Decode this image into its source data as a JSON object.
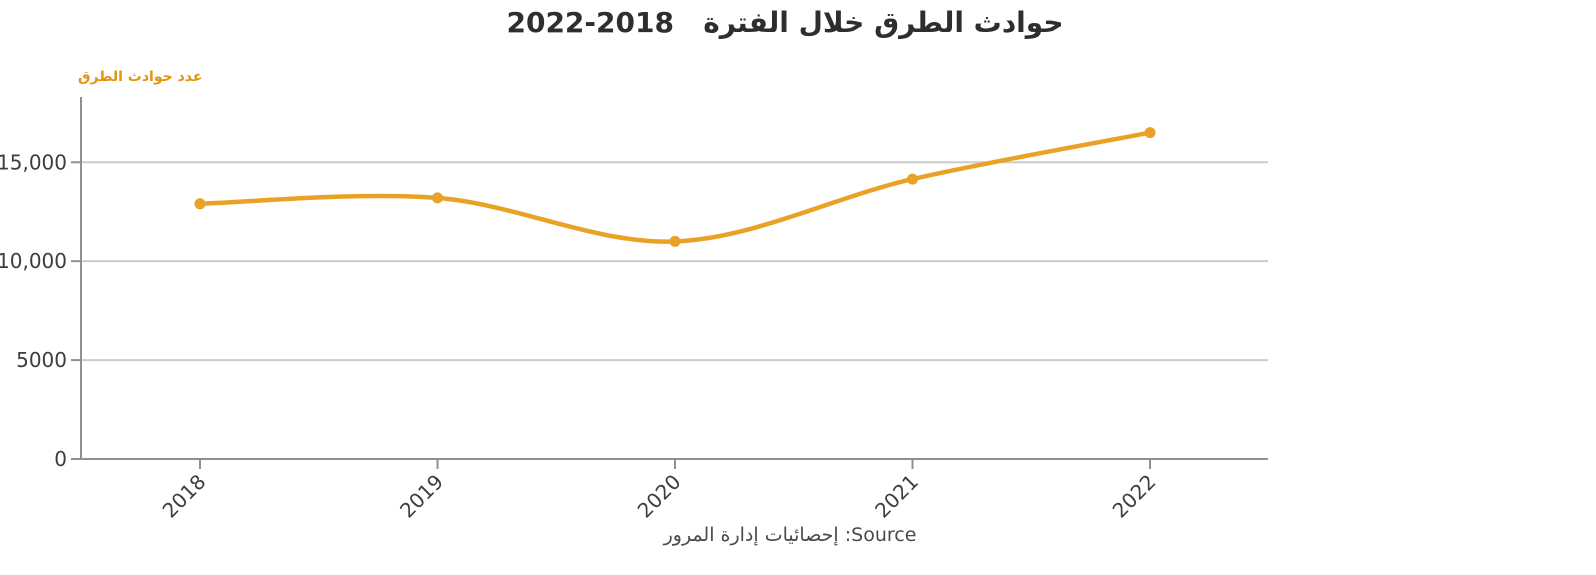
{
  "title": {
    "text": "حوادث الطرق خلال الفترة",
    "range_display": "2022-2018"
  },
  "y_axis_label": "عدد حوادث الطرق",
  "source_note": "Source: إحصائيات إدارة المرور",
  "chart_data": {
    "type": "line",
    "title": "حوادث الطرق خلال الفترة 2018-2022",
    "categories": [
      "2018",
      "2019",
      "2020",
      "2021",
      "2022"
    ],
    "series": [
      {
        "name": "عدد حوادث الطرق",
        "color": "#E9A226",
        "values": [
          12900,
          13200,
          11000,
          14150,
          16500
        ]
      }
    ],
    "xlabel": "",
    "ylabel": "عدد حوادث الطرق",
    "ylim": [
      0,
      18300
    ],
    "yticks": [
      {
        "value": 0,
        "label": "0"
      },
      {
        "value": 5000,
        "label": "5000"
      },
      {
        "value": 10000,
        "label": "10,000"
      },
      {
        "value": 15000,
        "label": "15,000"
      }
    ],
    "grid": true,
    "legend_position": "none",
    "x_tick_rotation_deg": 45,
    "marker": "circle"
  },
  "colors": {
    "accent_line": "#E9A226",
    "axis_label_accent": "#E4940F",
    "title_text": "#2E2E2E",
    "tick_text": "#3D3D3D",
    "gridline": "#CBCBCB",
    "axis_line": "#909090",
    "source_text": "#4A4A4A",
    "background": "#FFFFFF"
  }
}
